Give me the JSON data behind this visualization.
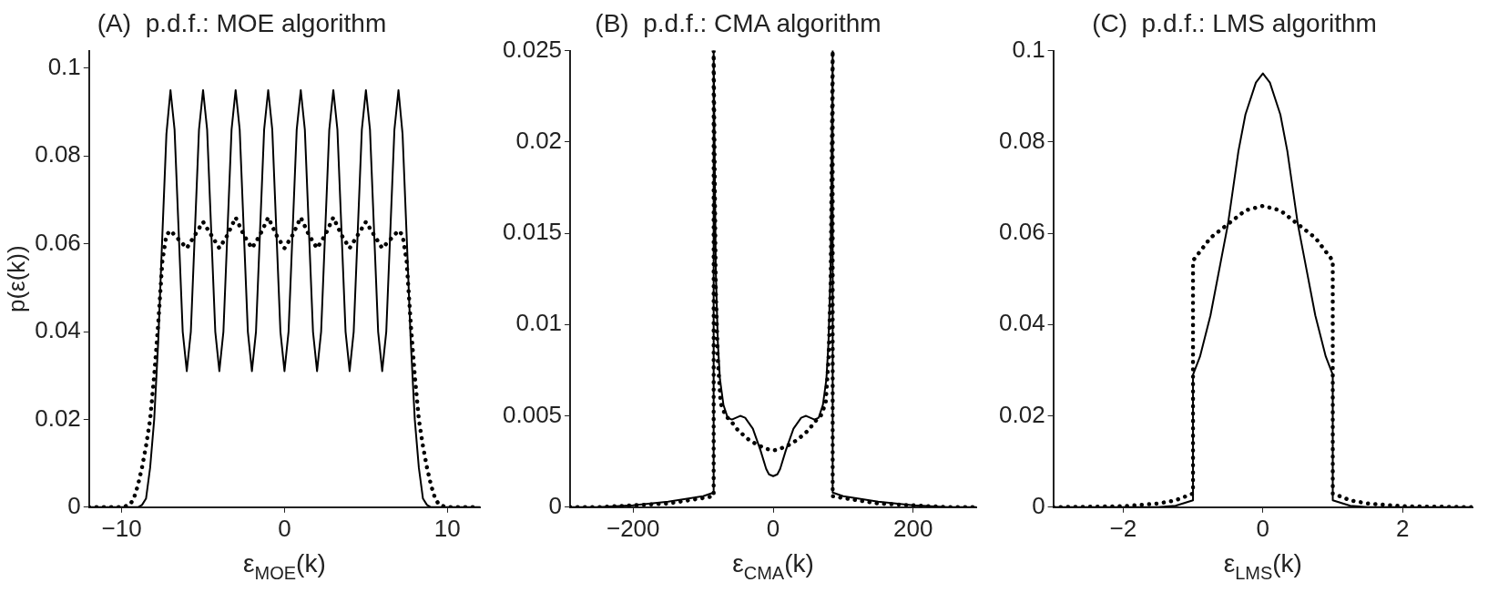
{
  "chart_data": [
    {
      "type": "line",
      "title": "(A)  p.d.f.: MOE algorithm",
      "xlabel": "ε$_{MOE}$(k)",
      "ylabel": "p(ε(k))",
      "xlim": [
        -12,
        12
      ],
      "xticks": [
        -10,
        0,
        10
      ],
      "ylim": [
        0,
        0.104
      ],
      "yticks": [
        0,
        0.02,
        0.04,
        0.06,
        0.08,
        0.1
      ],
      "series": [
        {
          "color": "#000000",
          "line_style": "solid",
          "x": [
            -12,
            -10,
            -9,
            -8.75,
            -8.5,
            -8.25,
            -8,
            -7.75,
            -7.5,
            -7.25,
            -7,
            -6.75,
            -6.5,
            -6.25,
            -6,
            -5.75,
            -5.5,
            -5.25,
            -5,
            -4.75,
            -4.5,
            -4.25,
            -4,
            -3.75,
            -3.5,
            -3.25,
            -3,
            -2.75,
            -2.5,
            -2.25,
            -2,
            -1.75,
            -1.5,
            -1.25,
            -1,
            -0.75,
            -0.5,
            -0.25,
            0,
            0.25,
            0.5,
            0.75,
            1,
            1.25,
            1.5,
            1.75,
            2,
            2.25,
            2.5,
            2.75,
            3,
            3.25,
            3.5,
            3.75,
            4,
            4.25,
            4.5,
            4.75,
            5,
            5.25,
            5.5,
            5.75,
            6,
            6.25,
            6.5,
            6.75,
            7,
            7.25,
            7.5,
            7.75,
            8,
            8.25,
            8.5,
            8.75,
            9,
            10,
            12
          ],
          "values": [
            0,
            0,
            0,
            0.0005,
            0.002,
            0.009,
            0.02,
            0.038,
            0.062,
            0.085,
            0.095,
            0.086,
            0.063,
            0.04,
            0.031,
            0.04,
            0.063,
            0.086,
            0.095,
            0.086,
            0.063,
            0.04,
            0.031,
            0.04,
            0.063,
            0.086,
            0.095,
            0.086,
            0.063,
            0.04,
            0.031,
            0.04,
            0.063,
            0.086,
            0.095,
            0.086,
            0.063,
            0.04,
            0.031,
            0.04,
            0.063,
            0.086,
            0.095,
            0.086,
            0.063,
            0.04,
            0.031,
            0.04,
            0.063,
            0.086,
            0.095,
            0.086,
            0.063,
            0.04,
            0.031,
            0.04,
            0.063,
            0.086,
            0.095,
            0.086,
            0.063,
            0.04,
            0.031,
            0.04,
            0.063,
            0.086,
            0.095,
            0.085,
            0.062,
            0.038,
            0.02,
            0.009,
            0.002,
            0.0005,
            0,
            0,
            0
          ]
        },
        {
          "color": "#000000",
          "line_style": "dotted",
          "x": [
            -12,
            -10,
            -9.5,
            -9.25,
            -9,
            -8.75,
            -8.5,
            -8.25,
            -8,
            -7.75,
            -7.5,
            -7.25,
            -7,
            -6.5,
            -6,
            -5.5,
            -5,
            -4.5,
            -4,
            -3.5,
            -3,
            -2.5,
            -2,
            -1.5,
            -1,
            -0.5,
            0,
            0.5,
            1,
            1.5,
            2,
            2.5,
            3,
            3.5,
            4,
            4.5,
            5,
            5.5,
            6,
            6.5,
            7,
            7.25,
            7.5,
            7.75,
            8,
            8.25,
            8.5,
            8.75,
            9,
            9.25,
            9.5,
            10,
            12
          ],
          "values": [
            0,
            0,
            0.0005,
            0.002,
            0.005,
            0.009,
            0.014,
            0.02,
            0.03,
            0.042,
            0.056,
            0.062,
            0.063,
            0.061,
            0.059,
            0.062,
            0.065,
            0.062,
            0.059,
            0.062,
            0.066,
            0.062,
            0.059,
            0.062,
            0.066,
            0.062,
            0.059,
            0.062,
            0.066,
            0.062,
            0.059,
            0.062,
            0.066,
            0.062,
            0.059,
            0.062,
            0.065,
            0.062,
            0.059,
            0.061,
            0.063,
            0.062,
            0.056,
            0.042,
            0.03,
            0.02,
            0.014,
            0.009,
            0.005,
            0.002,
            0.0005,
            0,
            0
          ]
        }
      ]
    },
    {
      "type": "line",
      "title": "(B)  p.d.f.: CMA algorithm",
      "xlabel": "ε$_{CMA}$(k)",
      "xlim": [
        -290,
        290
      ],
      "xticks": [
        -200,
        0,
        200
      ],
      "ylim": [
        0,
        0.025
      ],
      "yticks": [
        0,
        0.005,
        0.01,
        0.015,
        0.02,
        0.025
      ],
      "series": [
        {
          "color": "#000000",
          "line_style": "solid",
          "x": [
            -290,
            -250,
            -200,
            -150,
            -100,
            -85,
            -85,
            -82,
            -79,
            -76,
            -71,
            -65,
            -59,
            -53,
            -47,
            -40,
            -29,
            -18,
            -10,
            -6,
            0,
            6,
            10,
            18,
            29,
            40,
            47,
            53,
            59,
            65,
            71,
            76,
            79,
            82,
            85,
            85,
            100,
            150,
            200,
            250,
            290
          ],
          "values": [
            0,
            0,
            0.0001,
            0.0003,
            0.0006,
            0.0008,
            0.025,
            0.013,
            0.009,
            0.007,
            0.0056,
            0.0049,
            0.0048,
            0.0049,
            0.005,
            0.0049,
            0.0043,
            0.0031,
            0.0021,
            0.0018,
            0.0017,
            0.0018,
            0.0021,
            0.0031,
            0.0043,
            0.0049,
            0.005,
            0.0049,
            0.0048,
            0.0049,
            0.0056,
            0.007,
            0.009,
            0.013,
            0.025,
            0.0008,
            0.0006,
            0.0003,
            0.0001,
            0,
            0
          ]
        },
        {
          "color": "#000000",
          "line_style": "dotted",
          "x": [
            -290,
            -250,
            -200,
            -150,
            -100,
            -85,
            -85,
            -82,
            -79,
            -75,
            -68,
            -60,
            -50,
            -35,
            -22,
            -10,
            0,
            10,
            22,
            35,
            50,
            60,
            68,
            75,
            79,
            82,
            85,
            85,
            100,
            150,
            200,
            250,
            290
          ],
          "values": [
            0,
            0,
            0.0001,
            0.0002,
            0.0005,
            0.0006,
            0.025,
            0.012,
            0.008,
            0.0057,
            0.005,
            0.0047,
            0.0042,
            0.0037,
            0.0034,
            0.0032,
            0.0031,
            0.0032,
            0.0034,
            0.0037,
            0.0042,
            0.0047,
            0.005,
            0.0057,
            0.008,
            0.012,
            0.025,
            0.0006,
            0.0005,
            0.0002,
            0.0001,
            0,
            0
          ]
        }
      ]
    },
    {
      "type": "line",
      "title": "(C)  p.d.f.: LMS algorithm",
      "xlabel": "ε$_{LMS}$(k)",
      "xlim": [
        -3,
        3
      ],
      "xticks": [
        -2,
        0,
        2
      ],
      "ylim": [
        0,
        0.1
      ],
      "yticks": [
        0,
        0.02,
        0.04,
        0.06,
        0.08,
        0.1
      ],
      "series": [
        {
          "color": "#000000",
          "line_style": "solid",
          "x": [
            -3,
            -2,
            -1.5,
            -1.25,
            -1,
            -1,
            -0.9,
            -0.75,
            -0.6,
            -0.5,
            -0.35,
            -0.25,
            -0.1,
            0,
            0.1,
            0.25,
            0.35,
            0.5,
            0.6,
            0.75,
            0.9,
            1,
            1,
            1.25,
            1.5,
            2,
            3
          ],
          "values": [
            0,
            0,
            0,
            0.0003,
            0.0015,
            0.029,
            0.033,
            0.042,
            0.054,
            0.062,
            0.078,
            0.086,
            0.093,
            0.095,
            0.093,
            0.086,
            0.078,
            0.062,
            0.054,
            0.042,
            0.033,
            0.029,
            0.0015,
            0.0003,
            0,
            0,
            0
          ]
        },
        {
          "color": "#000000",
          "line_style": "dotted",
          "x": [
            -3,
            -2,
            -1.5,
            -1.25,
            -1,
            -1,
            -0.75,
            -0.5,
            -0.25,
            0,
            0.25,
            0.5,
            0.75,
            1,
            1,
            1.25,
            1.5,
            2,
            3
          ],
          "values": [
            0,
            0.0002,
            0.0008,
            0.0015,
            0.003,
            0.054,
            0.059,
            0.062,
            0.065,
            0.066,
            0.065,
            0.062,
            0.059,
            0.054,
            0.003,
            0.0015,
            0.0008,
            0.0002,
            0
          ]
        }
      ]
    }
  ]
}
